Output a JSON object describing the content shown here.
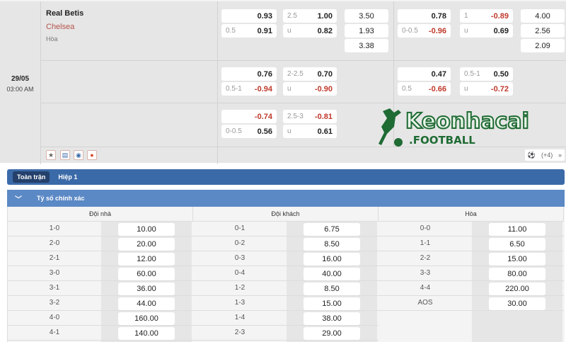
{
  "match": {
    "home": "Real Betis",
    "away": "Chelsea",
    "draw": "Hòa",
    "date": "29/05",
    "time": "03:00 AM",
    "icons": [
      "star-icon",
      "stats-icon",
      "eye-icon",
      "fire-icon"
    ],
    "more_label": "(+4)",
    "watermark": "Keonhacai .FOOTBALL",
    "blocks": [
      {
        "hdp": [
          {
            "l": "",
            "v": "0.93"
          },
          {
            "l": "0.5",
            "v": "0.91"
          }
        ],
        "ou": [
          {
            "l": "2.5",
            "v": "1.00"
          },
          {
            "l": "u",
            "v": "0.82"
          }
        ],
        "x12": [
          {
            "l": "",
            "v": "3.50"
          },
          {
            "l": "",
            "v": "1.93"
          },
          {
            "l": "",
            "v": "3.38"
          }
        ],
        "hdp_h1": [
          {
            "l": "",
            "v": "0.78"
          },
          {
            "l": "0-0.5",
            "v": "-0.96"
          }
        ],
        "ou_h1": [
          {
            "l": "1",
            "v": "-0.89"
          },
          {
            "l": "u",
            "v": "0.69"
          }
        ],
        "x12_h1": [
          {
            "l": "",
            "v": "4.00"
          },
          {
            "l": "",
            "v": "2.56"
          },
          {
            "l": "",
            "v": "2.09"
          }
        ]
      },
      {
        "hdp": [
          {
            "l": "",
            "v": "0.76"
          },
          {
            "l": "0.5-1",
            "v": "-0.94"
          }
        ],
        "ou": [
          {
            "l": "2-2.5",
            "v": "0.70"
          },
          {
            "l": "u",
            "v": "-0.90"
          }
        ],
        "x12": [],
        "hdp_h1": [
          {
            "l": "",
            "v": "0.47"
          },
          {
            "l": "0.5",
            "v": "-0.66"
          }
        ],
        "ou_h1": [
          {
            "l": "0.5-1",
            "v": "0.50"
          },
          {
            "l": "u",
            "v": "-0.72"
          }
        ],
        "x12_h1": []
      },
      {
        "hdp": [
          {
            "l": "",
            "v": "-0.74"
          },
          {
            "l": "0-0.5",
            "v": "0.56"
          }
        ],
        "ou": [
          {
            "l": "2.5-3",
            "v": "-0.81"
          },
          {
            "l": "u",
            "v": "0.61"
          }
        ],
        "x12": [],
        "hdp_h1": [],
        "ou_h1": [],
        "x12_h1": []
      }
    ]
  },
  "tabs": [
    {
      "label": "Toàn trận",
      "active": true
    },
    {
      "label": "Hiệp 1",
      "active": false
    }
  ],
  "section": {
    "title": "Tỷ số chính xác"
  },
  "correct_score": {
    "columns": [
      {
        "header": "Đội nhà",
        "rows": [
          [
            "1-0",
            "10.00"
          ],
          [
            "2-0",
            "20.00"
          ],
          [
            "2-1",
            "12.00"
          ],
          [
            "3-0",
            "60.00"
          ],
          [
            "3-1",
            "36.00"
          ],
          [
            "3-2",
            "44.00"
          ],
          [
            "4-0",
            "160.00"
          ],
          [
            "4-1",
            "140.00"
          ]
        ]
      },
      {
        "header": "Đội khách",
        "rows": [
          [
            "0-1",
            "6.75"
          ],
          [
            "0-2",
            "8.50"
          ],
          [
            "0-3",
            "16.00"
          ],
          [
            "0-4",
            "40.00"
          ],
          [
            "1-2",
            "8.50"
          ],
          [
            "1-3",
            "15.00"
          ],
          [
            "1-4",
            "38.00"
          ],
          [
            "2-3",
            "29.00"
          ]
        ]
      },
      {
        "header": "Hòa",
        "rows": [
          [
            "0-0",
            "11.00"
          ],
          [
            "1-1",
            "6.50"
          ],
          [
            "2-2",
            "15.00"
          ],
          [
            "3-3",
            "80.00"
          ],
          [
            "4-4",
            "220.00"
          ],
          [
            "AOS",
            "30.00"
          ]
        ]
      }
    ]
  },
  "colors": {
    "negative": "#c0392b",
    "tab_bar": "#3b6aa8",
    "section": "#5b89c5",
    "watermark": "#1f6b34"
  }
}
